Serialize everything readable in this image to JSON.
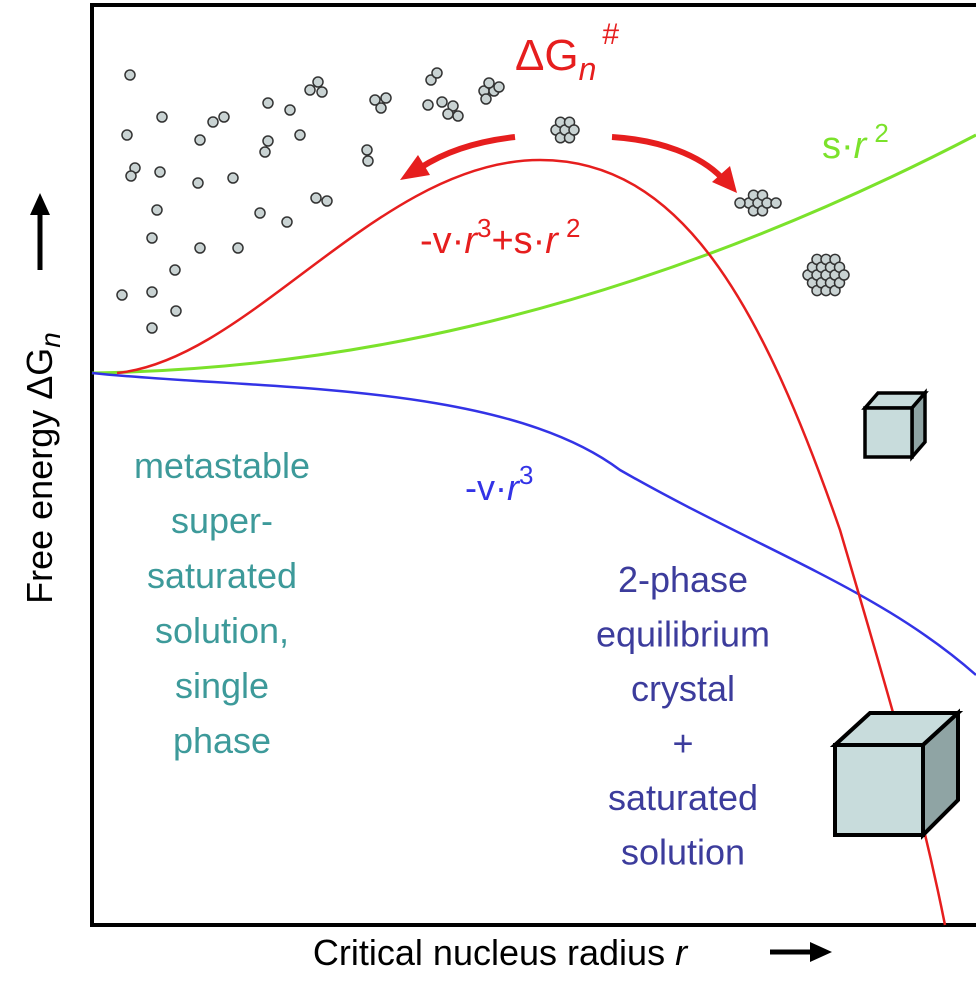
{
  "barrier_label": {
    "base": "ΔG",
    "sub": "n",
    "sup": "#"
  },
  "surface_label": [
    "s·",
    "r",
    "2"
  ],
  "total_label": [
    "-v·",
    "r",
    "3",
    "+s·",
    "r",
    "2"
  ],
  "volume_label": [
    "-v·",
    "r",
    "3"
  ],
  "metastable_label": [
    "metastable",
    "super-",
    "saturated",
    "solution,",
    "single",
    "phase"
  ],
  "equilibrium_label": [
    "2-phase",
    "equilibrium",
    "crystal",
    "+",
    "saturated",
    "solution"
  ],
  "y_axis_label": {
    "base": "Free energy ΔG",
    "sub": "n"
  },
  "x_axis_label": {
    "base": "Critical nucleus radius ",
    "var": "r"
  }
}
